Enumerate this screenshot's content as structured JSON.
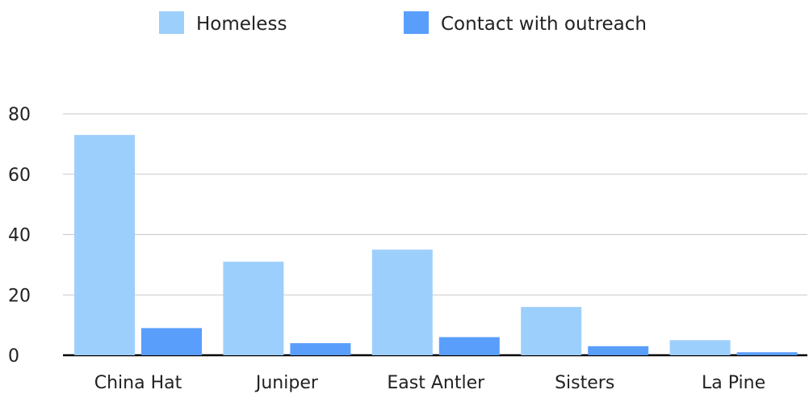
{
  "colors": {
    "homeless": "#9dcffc",
    "outreach": "#5a9efc",
    "grid": "#c8c8c8",
    "axis": "#000000"
  },
  "chart_data": {
    "type": "bar",
    "categories": [
      "China Hat",
      "Juniper",
      "East Antler",
      "Sisters",
      "La Pine"
    ],
    "series": [
      {
        "name": "Homeless",
        "values": [
          73,
          31,
          35,
          16,
          5
        ]
      },
      {
        "name": "Contact with outreach",
        "values": [
          9,
          4,
          6,
          3,
          1
        ]
      }
    ],
    "yticks": [
      0,
      20,
      40,
      60,
      80
    ],
    "ylim": [
      0,
      80
    ],
    "grid": true,
    "legend": "top-center",
    "title": "",
    "xlabel": "",
    "ylabel": ""
  }
}
